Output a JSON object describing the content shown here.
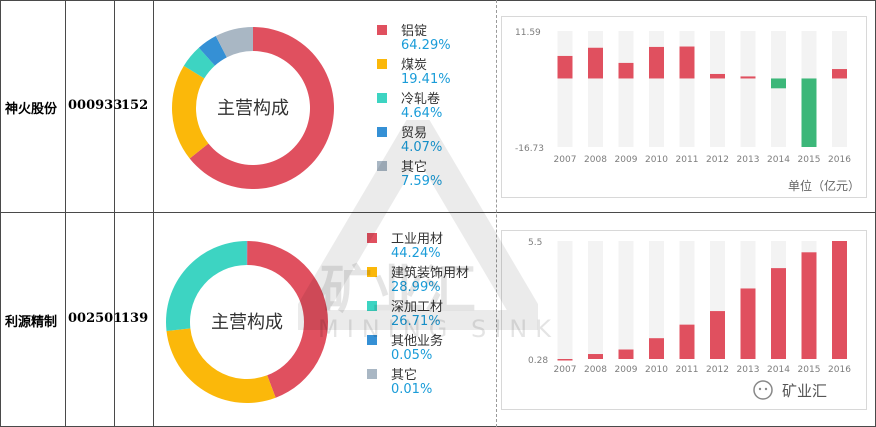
{
  "rows": [
    {
      "company": "神火股份",
      "code": "000933",
      "number": "152",
      "donut_center": "主营构成",
      "segments": [
        {
          "name": "铝锭",
          "pct": "64.29%",
          "value": 64.29,
          "color": "#e0505f"
        },
        {
          "name": "煤炭",
          "pct": "19.41%",
          "value": 19.41,
          "color": "#fbb80a"
        },
        {
          "name": "冷轧卷",
          "pct": "4.64%",
          "value": 4.64,
          "color": "#3dd4c2"
        },
        {
          "name": "贸易",
          "pct": "4.07%",
          "value": 4.07,
          "color": "#3590d5"
        },
        {
          "name": "其它",
          "pct": "7.59%",
          "value": 7.59,
          "color": "#a9b7c4"
        }
      ],
      "unit_label": "单位（亿元）"
    },
    {
      "company": "利源精制",
      "code": "002501",
      "number": "139",
      "donut_center": "主营构成",
      "segments": [
        {
          "name": "工业用材",
          "pct": "44.24%",
          "value": 44.24,
          "color": "#e0505f"
        },
        {
          "name": "建筑装饰用材",
          "pct": "28.99%",
          "value": 28.99,
          "color": "#fbb80a"
        },
        {
          "name": "深加工材",
          "pct": "26.71%",
          "value": 26.71,
          "color": "#3dd4c2"
        },
        {
          "name": "其他业务",
          "pct": "0.05%",
          "value": 0.05,
          "color": "#3590d5"
        },
        {
          "name": "其它",
          "pct": "0.01%",
          "value": 0.01,
          "color": "#a9b7c4"
        }
      ],
      "unit_label": ""
    }
  ],
  "watermark": {
    "cn": "矿业汇",
    "en": "MINING SINK"
  },
  "corner_logo": "矿业汇",
  "colors": {
    "positive": "#e0505f",
    "negative": "#3cb779",
    "track": "#f3f3f3"
  },
  "chart_data": [
    {
      "type": "pie",
      "title": "主营构成",
      "categories": [
        "铝锭",
        "煤炭",
        "冷轧卷",
        "贸易",
        "其它"
      ],
      "values": [
        64.29,
        19.41,
        4.64,
        4.07,
        7.59
      ]
    },
    {
      "type": "bar",
      "categories": [
        "2007",
        "2008",
        "2009",
        "2010",
        "2011",
        "2012",
        "2013",
        "2014",
        "2015",
        "2016"
      ],
      "values": [
        5.5,
        7.5,
        3.8,
        7.7,
        7.8,
        1.1,
        0.5,
        -2.4,
        -16.73,
        2.3
      ],
      "ytick_labels": [
        "11.59",
        "-16.73"
      ],
      "ylim": [
        -16.73,
        11.59
      ],
      "unit": "单位（亿元）",
      "grid": false
    },
    {
      "type": "pie",
      "title": "主营构成",
      "categories": [
        "工业用材",
        "建筑装饰用材",
        "深加工材",
        "其他业务",
        "其它"
      ],
      "values": [
        44.24,
        28.99,
        26.71,
        0.05,
        0.01
      ]
    },
    {
      "type": "bar",
      "categories": [
        "2007",
        "2008",
        "2009",
        "2010",
        "2011",
        "2012",
        "2013",
        "2014",
        "2015",
        "2016"
      ],
      "values": [
        0.28,
        0.5,
        0.7,
        1.2,
        1.8,
        2.4,
        3.4,
        4.3,
        5.0,
        5.5
      ],
      "ytick_labels": [
        "5.5",
        "0.28"
      ],
      "ylim": [
        0.28,
        5.5
      ],
      "grid": false
    }
  ]
}
